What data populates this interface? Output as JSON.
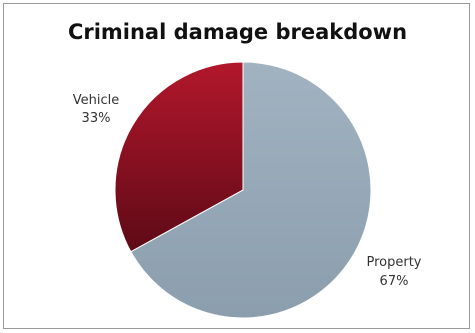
{
  "chart_data": {
    "type": "pie",
    "title": "Criminal damage breakdown",
    "slices": [
      {
        "label": "Vehicle",
        "percent_label": "33%",
        "value": 33,
        "color": "#8b1020"
      },
      {
        "label": "Property",
        "percent_label": "67%",
        "value": 67,
        "color": "#93a6b5"
      }
    ],
    "legend": "none",
    "data_labels": "outside"
  }
}
